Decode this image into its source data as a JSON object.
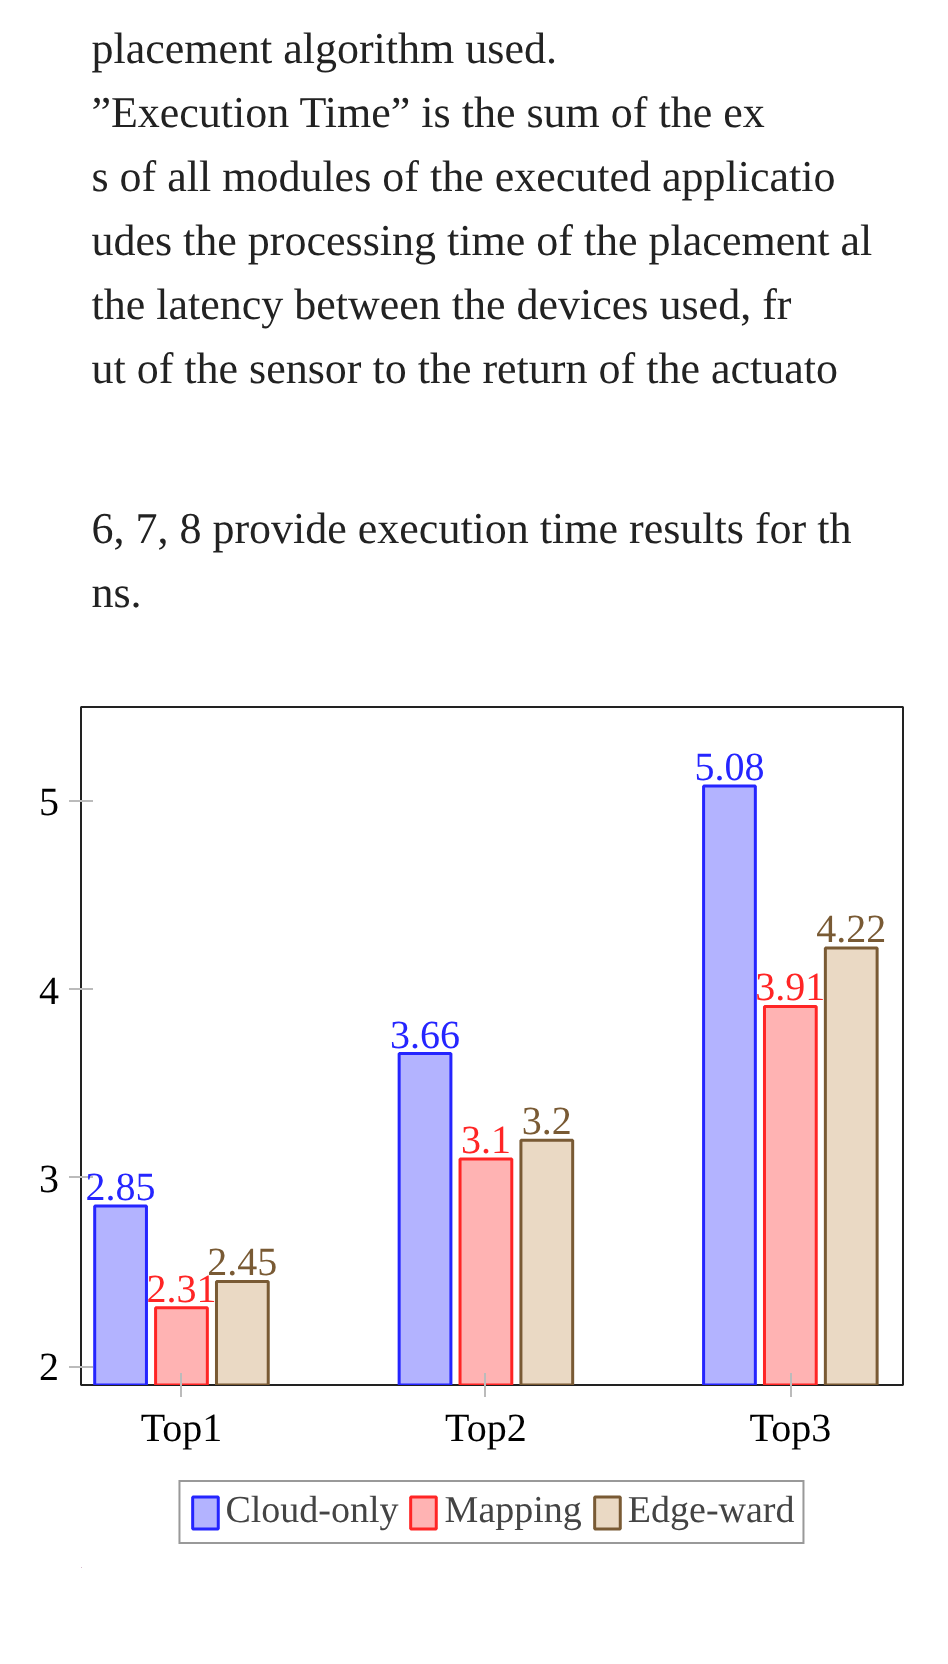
{
  "chart_data": {
    "type": "bar",
    "annotations": [
      "placement algorithm used.",
      "”Execution Time” is the sum of the ex",
      "s of all modules of the executed applicatio",
      "udes the processing time of the placement al",
      "the latency between the devices used, fr",
      "ut of the sensor to the return of the actuato",
      "6, 7, 8 provide execution time results for th",
      "ns."
    ],
    "categories": [
      "Top1",
      "Top2",
      "Top3"
    ],
    "series": [
      {
        "name": "Cloud-only",
        "color": "#b3b3ff",
        "values": [
          2.85,
          3.66,
          5.08
        ]
      },
      {
        "name": "Mapping",
        "color": "#ffb3b3",
        "values": [
          2.31,
          3.1,
          3.91
        ]
      },
      {
        "name": "Edge-ward",
        "color": "#ead9c4",
        "values": [
          2.45,
          3.2,
          4.22
        ]
      }
    ],
    "ylim": [
      1.9,
      5.5
    ],
    "yticks": [
      2,
      3,
      4,
      5
    ],
    "data_labels": true,
    "grid": false,
    "legend": "bottom"
  }
}
